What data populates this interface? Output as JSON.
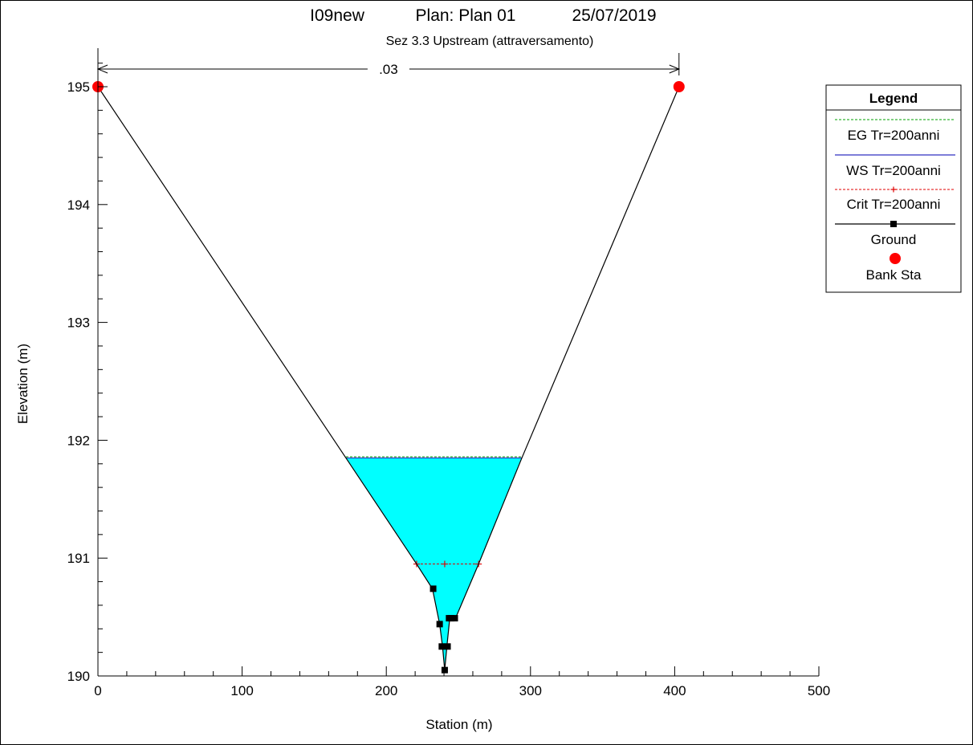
{
  "chart_data": {
    "type": "line",
    "title_parts": [
      "I09new",
      "Plan: Plan 01",
      "25/07/2019"
    ],
    "subtitle": "Sez 3.3 Upstream (attraversamento)",
    "xlabel": "Station (m)",
    "ylabel": "Elevation (m)",
    "xlim": [
      0,
      500
    ],
    "ylim": [
      190,
      195.2
    ],
    "x_ticks": [
      0,
      100,
      200,
      300,
      400,
      500
    ],
    "y_ticks": [
      190,
      191,
      192,
      193,
      194,
      195
    ],
    "manning_label": ".03",
    "manning_span": [
      0,
      403
    ],
    "colors": {
      "water_fill": "#00ffff",
      "eg": "#00a000",
      "ws": "#3030c0",
      "crit": "#e00000",
      "ground": "#000000",
      "bank": "#ff0000"
    },
    "ground": {
      "x": [
        0,
        172,
        221,
        232,
        237,
        239,
        240.5,
        242,
        244,
        248,
        264,
        294,
        403
      ],
      "y": [
        195,
        191.85,
        190.95,
        190.74,
        190.44,
        190.25,
        190.05,
        190.25,
        190.49,
        190.49,
        190.95,
        191.85,
        195
      ]
    },
    "ground_markers": {
      "x": [
        232.5,
        237,
        238.5,
        240.5,
        242.5,
        243.5,
        245,
        247.5
      ],
      "y": [
        190.74,
        190.44,
        190.25,
        190.05,
        190.25,
        190.49,
        190.49,
        190.49
      ]
    },
    "bank_stations": {
      "x": [
        0,
        403
      ],
      "y": [
        195,
        195
      ]
    },
    "ws_elevation": 191.85,
    "eg_elevation": 191.86,
    "crit_elevation": 190.95,
    "crit_span": [
      221,
      264
    ],
    "crit_markers": [
      221,
      240.5,
      264
    ],
    "legend": {
      "title": "Legend",
      "placement": "right",
      "entries": [
        "EG Tr=200anni",
        "WS Tr=200anni",
        "Crit Tr=200anni",
        "Ground",
        "Bank Sta"
      ]
    }
  }
}
